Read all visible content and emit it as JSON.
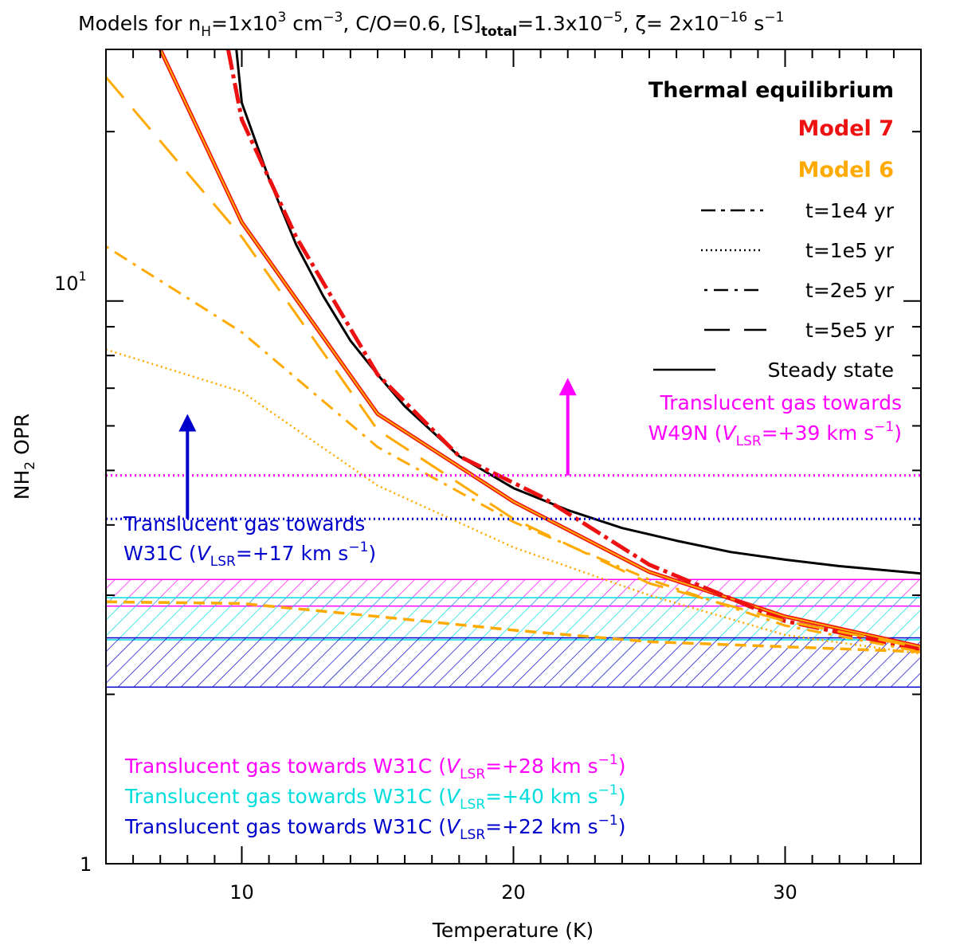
{
  "chart_data": {
    "type": "line",
    "title_parts": {
      "a": "Models for n",
      "a_sub": "H",
      "b": "=1x10",
      "b_sup": "3",
      "c": " cm",
      "c_sup": "−3",
      "d": ", C/O=0.6, [S]",
      "d_sub": "total",
      "e": "=1.3x10",
      "e_sup": "−5",
      "f": ", ζ= 2x10",
      "f_sup": "−16",
      "g": " s",
      "g_sup": "−1"
    },
    "xlabel": "Temperature (K)",
    "ylabel_main": "NH",
    "ylabel_sub": "2",
    "ylabel_rest": " OPR",
    "x_range": [
      5,
      35
    ],
    "y_range_log": [
      1,
      28
    ],
    "x_ticks": [
      10,
      20,
      30
    ],
    "y_tick_labels": [
      {
        "value": 1,
        "base": "1",
        "sup": ""
      },
      {
        "value": 10,
        "base": "10",
        "sup": "1"
      }
    ],
    "colors": {
      "black": "#000000",
      "red": "#ee1111",
      "orange": "#ffaa00",
      "magenta": "#ff00ff",
      "blue": "#0000cc",
      "cyan": "#00dddd"
    },
    "legend": {
      "thermal": "Thermal equilibrium",
      "model7": "Model 7",
      "model6": "Model 6",
      "t1": "t=1e4 yr",
      "t2": "t=1e5 yr",
      "t3": "t=2e5 yr",
      "t4": "t=5e5 yr",
      "steady": "Steady state"
    },
    "series": [
      {
        "name": "Thermal equilibrium",
        "color": "black",
        "style": "solid",
        "x": [
          9.8,
          10,
          11,
          12,
          13,
          14,
          15,
          16,
          18,
          20,
          22,
          24,
          26,
          28,
          30,
          32,
          35
        ],
        "y": [
          28,
          22.5,
          16.5,
          12.6,
          10.2,
          8.5,
          7.4,
          6.5,
          5.3,
          4.65,
          4.25,
          3.95,
          3.75,
          3.58,
          3.47,
          3.38,
          3.28
        ]
      },
      {
        "name": "Model 7 steady state",
        "color": "red",
        "style": "solid",
        "x": [
          7,
          10,
          15,
          20,
          25,
          30,
          35
        ],
        "y": [
          28,
          13.8,
          6.3,
          4.4,
          3.3,
          2.75,
          2.43
        ]
      },
      {
        "name": "Model 6 steady state",
        "color": "orange",
        "style": "solid",
        "x": [
          7,
          10,
          15,
          20,
          25,
          30,
          35
        ],
        "y": [
          28,
          13.8,
          6.3,
          4.4,
          3.3,
          2.75,
          2.43
        ]
      },
      {
        "name": "Model 7 t=5e5 yr",
        "color": "red",
        "style": "dash-dot-thick",
        "x": [
          9.5,
          10,
          12,
          15,
          18,
          21,
          25,
          30,
          35
        ],
        "y": [
          28,
          21,
          13,
          7.4,
          5.3,
          4.5,
          3.4,
          2.7,
          2.4
        ]
      },
      {
        "name": "Model 6 t=5e5 yr",
        "color": "orange",
        "style": "long-dash",
        "x": [
          5,
          10,
          15,
          20,
          25,
          30,
          35
        ],
        "y": [
          25,
          13,
          5.9,
          4.1,
          3.15,
          2.7,
          2.42
        ]
      },
      {
        "name": "Model 6 t=2e5 yr",
        "color": "orange",
        "style": "dash-dot",
        "x": [
          5,
          10,
          15,
          20,
          25,
          30,
          35
        ],
        "y": [
          12.5,
          8.8,
          5.5,
          4.05,
          3.2,
          2.65,
          2.38
        ]
      },
      {
        "name": "Model 6 t=1e5 yr",
        "color": "orange",
        "style": "dotted",
        "x": [
          5,
          10,
          15,
          20,
          25,
          30,
          35
        ],
        "y": [
          8.2,
          6.9,
          4.7,
          3.65,
          3.0,
          2.55,
          2.36
        ]
      },
      {
        "name": "Model 6 t=1e4 yr",
        "color": "orange",
        "style": "short-dash",
        "x": [
          5,
          10,
          15,
          20,
          25,
          30,
          35
        ],
        "y": [
          2.92,
          2.9,
          2.75,
          2.6,
          2.48,
          2.43,
          2.38
        ]
      }
    ],
    "hlines": [
      {
        "name": "W49N +39",
        "color": "magenta",
        "y": 4.9
      },
      {
        "name": "W31C +17",
        "color": "blue",
        "y": 4.1
      }
    ],
    "bands": [
      {
        "name": "W31C +28",
        "color": "magenta",
        "y1": 2.87,
        "y2": 3.2
      },
      {
        "name": "W31C +40",
        "color": "cyan",
        "y1": 2.5,
        "y2": 2.97
      },
      {
        "name": "W31C +22",
        "color": "blue",
        "y1": 2.06,
        "y2": 2.52
      }
    ],
    "arrows": [
      {
        "name": "W31C arrow",
        "color": "blue",
        "x": 8,
        "y_from": 4.1,
        "y_to": 6.3
      },
      {
        "name": "W49N arrow",
        "color": "magenta",
        "x": 22,
        "y_from": 4.9,
        "y_to": 7.3
      }
    ],
    "annotations": {
      "w49n_line1": "Translucent gas towards",
      "w49n_line2_a": "W49N (",
      "w49n_v": "V",
      "w49n_vsub": "LSR",
      "w49n_line2_b": "=+39 km s",
      "w49n_sup": "−1",
      "w49n_close": ")",
      "w31c17_line1": "Translucent gas towards",
      "w31c17_line2_a": "W31C (",
      "w31c17_v": "V",
      "w31c17_vsub": "LSR",
      "w31c17_line2_b": "=+17 km s",
      "w31c17_sup": "−1",
      "w31c17_close": ")",
      "band28_a": "Translucent gas towards W31C  (",
      "band28_v": "V",
      "band28_vsub": "LSR",
      "band28_b": "=+28 km s",
      "band28_sup": "−1",
      "band28_close": ")",
      "band40_a": "Translucent gas towards W31C (",
      "band40_v": "V",
      "band40_vsub": "LSR",
      "band40_b": "=+40 km s",
      "band40_sup": "−1",
      "band40_close": ")",
      "band22_a": "Translucent gas towards W31C  (",
      "band22_v": "V",
      "band22_vsub": "LSR",
      "band22_b": "=+22 km s",
      "band22_sup": "−1",
      "band22_close": ")"
    }
  }
}
